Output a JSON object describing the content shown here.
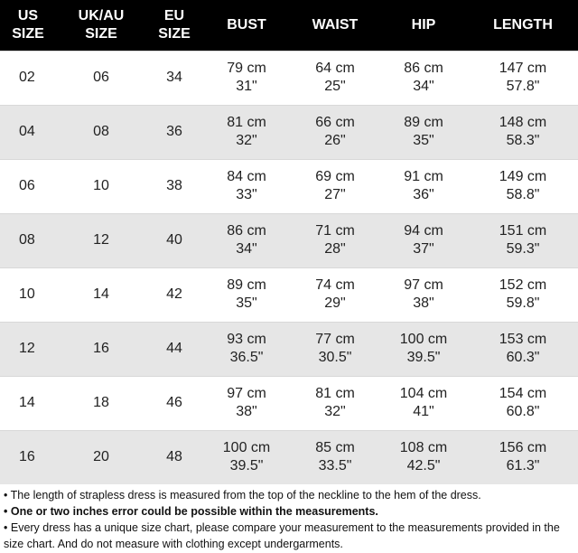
{
  "chart_data": {
    "type": "table",
    "columns": [
      "US\nSIZE",
      "UK/AU\nSIZE",
      "EU\nSIZE",
      "BUST",
      "WAIST",
      "HIP",
      "LENGTH"
    ],
    "rows": [
      [
        "02",
        "06",
        "34",
        "79 cm\n31\"",
        "64 cm\n25\"",
        "86 cm\n34\"",
        "147 cm\n57.8\""
      ],
      [
        "04",
        "08",
        "36",
        "81 cm\n32\"",
        "66 cm\n26\"",
        "89 cm\n35\"",
        "148 cm\n58.3\""
      ],
      [
        "06",
        "10",
        "38",
        "84 cm\n33\"",
        "69 cm\n27\"",
        "91 cm\n36\"",
        "149 cm\n58.8\""
      ],
      [
        "08",
        "12",
        "40",
        "86 cm\n34\"",
        "71 cm\n28\"",
        "94 cm\n37\"",
        "151 cm\n59.3\""
      ],
      [
        "10",
        "14",
        "42",
        "89 cm\n35\"",
        "74 cm\n29\"",
        "97 cm\n38\"",
        "152 cm\n59.8\""
      ],
      [
        "12",
        "16",
        "44",
        "93 cm\n36.5\"",
        "77 cm\n30.5\"",
        "100 cm\n39.5\"",
        "153 cm\n60.3\""
      ],
      [
        "14",
        "18",
        "46",
        "97 cm\n38\"",
        "81 cm\n32\"",
        "104 cm\n41\"",
        "154 cm\n60.8\""
      ],
      [
        "16",
        "20",
        "48",
        "100 cm\n39.5\"",
        "85 cm\n33.5\"",
        "108 cm\n42.5\"",
        "156 cm\n61.3\""
      ]
    ]
  },
  "notes": [
    {
      "bullet": "• ",
      "text": "The length of strapless dress is measured from the top of the neckline to the hem of the dress.",
      "bold": false
    },
    {
      "bullet": "• ",
      "text": "One or two inches error could be possible within the measurements.",
      "bold": true
    },
    {
      "bullet": "• ",
      "text": "Every dress has a unique size chart, please compare your measurement to the measurements provided in the size chart. And do not measure with clothing except undergarments.",
      "bold": false
    }
  ],
  "colors": {
    "header_bg": "#000000",
    "header_text": "#ffffff",
    "row_alt_bg": "#e6e6e6",
    "row_bg": "#ffffff"
  }
}
